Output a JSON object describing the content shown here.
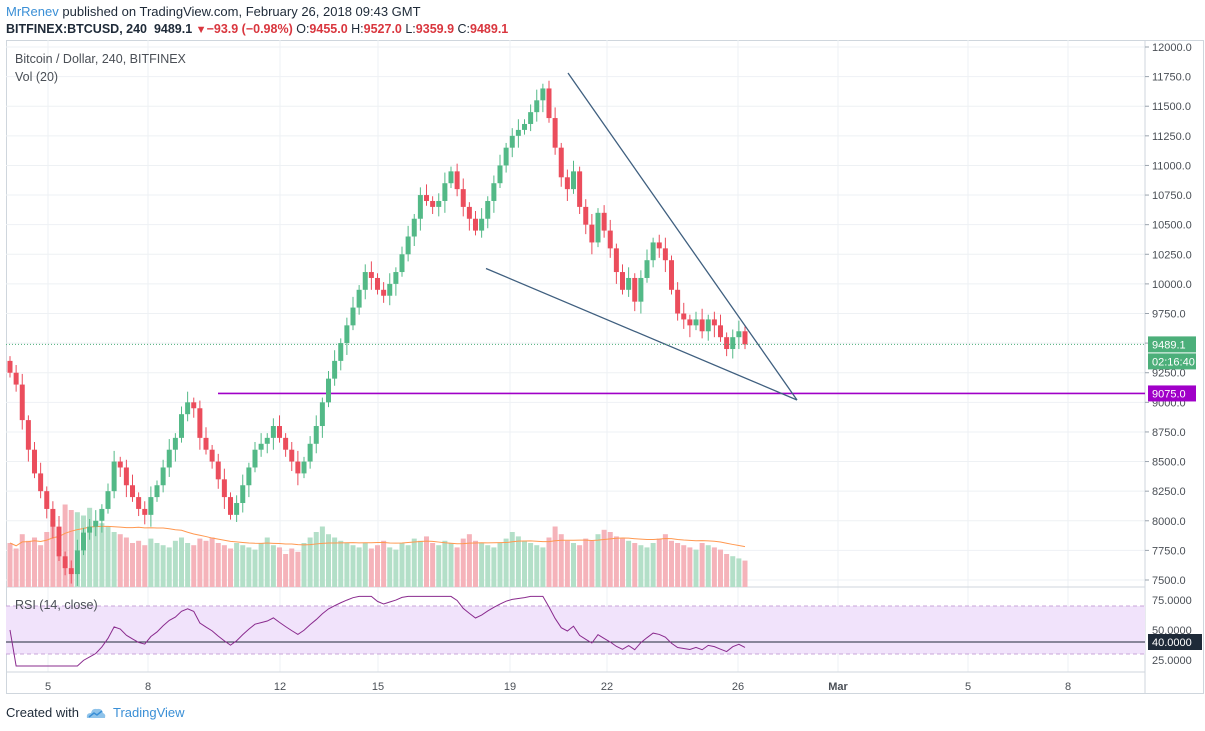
{
  "header": {
    "author": "MrRenev",
    "published": "published on TradingView.com, February 26, 2018 09:43 GMT",
    "symbol": "BITFINEX:BTCUSD, 240",
    "last": "9489.1",
    "change_arrow": "▼",
    "change": "−93.9 (−0.98%)",
    "open_label": "O:",
    "open": "9455.0",
    "high_label": "H:",
    "high": "9527.0",
    "low_label": "L:",
    "low": "9359.9",
    "close_label": "C:",
    "close": "9489.1"
  },
  "footer": {
    "created_with": "Created with",
    "brand": "TradingView",
    "logo_icon": "tradingview-cloud-icon"
  },
  "colors": {
    "up": "#53b987",
    "down": "#eb4d5c",
    "up_vol": "#b3dfc8",
    "down_vol": "#f5b3ba",
    "ma": "#ff9850",
    "rsi": "#8a2b8e",
    "rsi_band": "#f1e3fb",
    "trendline": "#3f5f7f",
    "support": "#a000c8",
    "price_label": "#4caf7a"
  },
  "chart_data": {
    "type": "candlestick",
    "title": "Bitcoin / Dollar, 240, BITFINEX",
    "volume_legend": "Vol (20)",
    "rsi_legend": "RSI (14, close)",
    "x_ticks": [
      "5",
      "8",
      "12",
      "15",
      "19",
      "22",
      "26",
      "Mar",
      "5",
      "8"
    ],
    "y_ticks": [
      "12000.0",
      "11750.0",
      "11500.0",
      "11250.0",
      "11000.0",
      "10750.0",
      "10500.0",
      "10250.0",
      "10000.0",
      "9750.0",
      "9500.0",
      "9250.0",
      "9000.0",
      "8750.0",
      "8500.0",
      "8250.0",
      "8000.0",
      "7750.0",
      "7500.0"
    ],
    "ylim": [
      7500,
      12000
    ],
    "rsi_ticks": [
      "75.0000",
      "50.0000",
      "25.0000"
    ],
    "rsi_current": "40.0000",
    "rsi_band": [
      30,
      70
    ],
    "last_price": "9489.1",
    "countdown": "02:16:40",
    "support_label": "9075.0",
    "support_level": 9075,
    "wedge": {
      "upper": [
        {
          "x": "Feb 20",
          "y": 11780
        },
        {
          "x": "Feb 28",
          "y": 9020
        }
      ],
      "lower": [
        {
          "x": "Feb 18",
          "y": 10130
        },
        {
          "x": "Feb 28",
          "y": 9020
        }
      ]
    },
    "closes": [
      9250,
      9150,
      8850,
      8600,
      8400,
      8250,
      8100,
      7950,
      7700,
      7600,
      7550,
      7750,
      7900,
      7950,
      8000,
      8100,
      8250,
      8500,
      8450,
      8300,
      8200,
      8100,
      8050,
      8200,
      8300,
      8450,
      8600,
      8700,
      8900,
      9000,
      8950,
      8700,
      8600,
      8500,
      8350,
      8200,
      8050,
      8150,
      8300,
      8450,
      8600,
      8650,
      8700,
      8800,
      8700,
      8600,
      8500,
      8400,
      8500,
      8650,
      8800,
      9000,
      9200,
      9350,
      9500,
      9650,
      9800,
      9950,
      10100,
      10050,
      9950,
      9900,
      10000,
      10100,
      10250,
      10400,
      10550,
      10750,
      10700,
      10650,
      10700,
      10850,
      10950,
      10800,
      10650,
      10550,
      10450,
      10550,
      10700,
      10850,
      11000,
      11150,
      11250,
      11300,
      11350,
      11450,
      11550,
      11650,
      11400,
      11150,
      10900,
      10800,
      10950,
      10650,
      10500,
      10350,
      10600,
      10450,
      10300,
      10100,
      9950,
      10050,
      9850,
      10050,
      10200,
      10350,
      10300,
      10200,
      9950,
      9750,
      9700,
      9650,
      9700,
      9600,
      9700,
      9650,
      9550,
      9450,
      9550,
      9600,
      9489
    ],
    "volumes": [
      40,
      35,
      48,
      42,
      45,
      38,
      50,
      60,
      55,
      75,
      70,
      68,
      65,
      72,
      60,
      58,
      55,
      50,
      48,
      45,
      40,
      42,
      38,
      44,
      40,
      38,
      36,
      42,
      45,
      40,
      38,
      44,
      42,
      45,
      40,
      38,
      35,
      40,
      38,
      36,
      34,
      40,
      45,
      38,
      36,
      30,
      35,
      32,
      40,
      45,
      50,
      55,
      48,
      45,
      42,
      40,
      38,
      36,
      40,
      35,
      38,
      42,
      36,
      34,
      40,
      38,
      44,
      42,
      46,
      40,
      38,
      42,
      40,
      36,
      44,
      48,
      42,
      40,
      38,
      36,
      40,
      44,
      50,
      46,
      42,
      40,
      38,
      36,
      45,
      55,
      48,
      42,
      40,
      38,
      44,
      42,
      48,
      52,
      50,
      46,
      44,
      42,
      40,
      38,
      36,
      40,
      44,
      48,
      42,
      40,
      38,
      36,
      34,
      40,
      38,
      36,
      34,
      30,
      28,
      26,
      24
    ]
  }
}
